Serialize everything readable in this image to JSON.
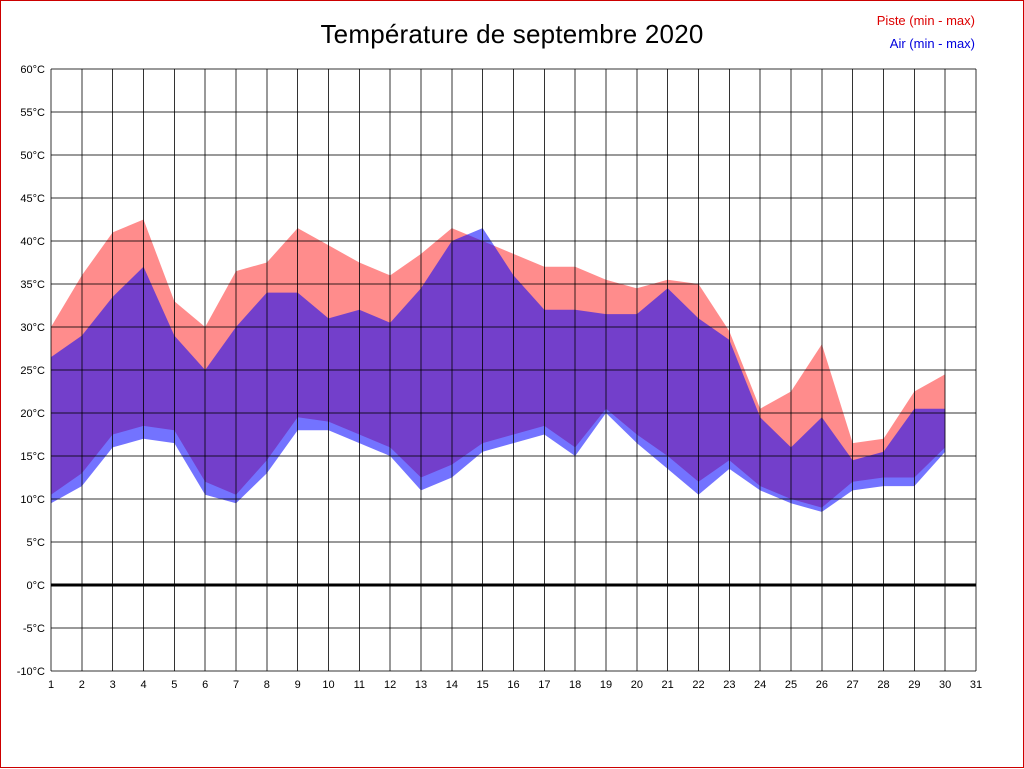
{
  "page": {
    "border_color": "#cc0000",
    "background": "#ffffff"
  },
  "legend": {
    "items": [
      {
        "label": "Piste (min - max)",
        "color": "#dd0000"
      },
      {
        "label": "Air (min - max)",
        "color": "#0000dd"
      }
    ]
  },
  "chart_data": {
    "type": "area",
    "title": "Température de septembre 2020",
    "xlabel": "",
    "ylabel": "",
    "grid": true,
    "legend_position": "top-right",
    "ylim": [
      -10,
      60
    ],
    "y_tick_step": 5,
    "y_tick_suffix": "°C",
    "zero_line": 0,
    "x_ticks": [
      1,
      2,
      3,
      4,
      5,
      6,
      7,
      8,
      9,
      10,
      11,
      12,
      13,
      14,
      15,
      16,
      17,
      18,
      19,
      20,
      21,
      22,
      23,
      24,
      25,
      26,
      27,
      28,
      29,
      30,
      31
    ],
    "x": [
      1,
      2,
      3,
      4,
      5,
      6,
      7,
      8,
      9,
      10,
      11,
      12,
      13,
      14,
      15,
      16,
      17,
      18,
      19,
      20,
      21,
      22,
      23,
      24,
      25,
      26,
      27,
      28,
      29,
      30
    ],
    "series": [
      {
        "name": "Piste (min - max)",
        "fill": "rgba(255,0,0,0.45)",
        "min": [
          10.5,
          13,
          17.5,
          18.5,
          18,
          12,
          10.5,
          14.5,
          19.5,
          19,
          17.5,
          16,
          12.5,
          14,
          16.5,
          17.5,
          18.5,
          16,
          20.5,
          17.5,
          15,
          12,
          14.5,
          11.5,
          10,
          9,
          12,
          12.5,
          12.5,
          16
        ],
        "max": [
          30,
          36,
          41,
          42.5,
          33,
          30,
          36.5,
          37.5,
          41.5,
          39.5,
          37.5,
          36,
          38.5,
          41.5,
          40,
          38.5,
          37,
          37,
          35.5,
          34.5,
          35.5,
          35,
          29.5,
          20.5,
          22.5,
          28,
          16.5,
          17,
          22.5,
          24.5
        ]
      },
      {
        "name": "Air (min - max)",
        "fill": "rgba(0,0,255,0.55)",
        "min": [
          9.5,
          11.5,
          16,
          17,
          16.5,
          10.5,
          9.5,
          13,
          18,
          18,
          16.5,
          15,
          11,
          12.5,
          15.5,
          16.5,
          17.5,
          15,
          20,
          16.5,
          13.5,
          10.5,
          13.5,
          11,
          9.5,
          8.5,
          11,
          11.5,
          11.5,
          15.5
        ],
        "max": [
          26.5,
          29,
          33.5,
          37,
          29,
          25,
          30,
          34,
          34,
          31,
          32,
          30.5,
          34.5,
          40,
          41.5,
          36,
          32,
          32,
          31.5,
          31.5,
          34.5,
          31,
          28.5,
          19.5,
          16,
          19.5,
          14.5,
          15.5,
          20.5,
          20.5
        ]
      }
    ]
  }
}
